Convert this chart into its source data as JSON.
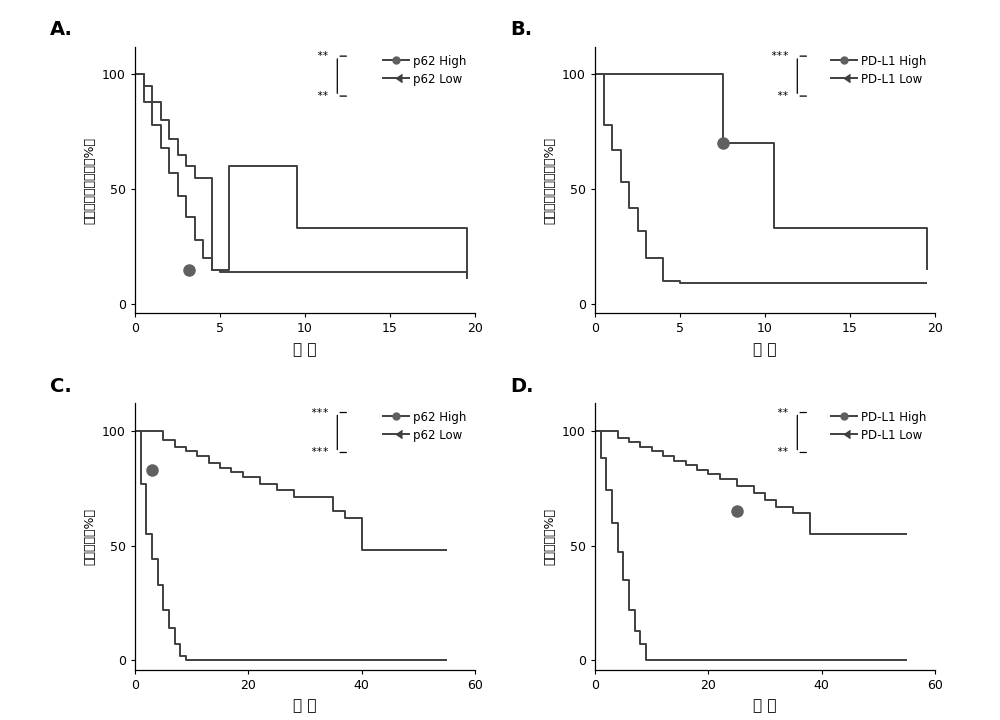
{
  "background_color": "#ffffff",
  "line_color": "#404040",
  "marker_color": "#606060",
  "panel_A": {
    "panel_label": "A.",
    "ylabel": "疾病无进展生存率（%）",
    "xlabel": "月 数",
    "xlim": [
      0,
      20
    ],
    "ylim": [
      -4,
      112
    ],
    "yticks": [
      0,
      50,
      100
    ],
    "xticks": [
      0,
      5,
      10,
      15,
      20
    ],
    "pval_stars": [
      "**",
      "**"
    ],
    "legend_high": "p62 High",
    "legend_low": "p62 Low",
    "high_x": [
      0,
      0.5,
      1.0,
      1.5,
      2.0,
      2.5,
      3.0,
      3.5,
      4.5,
      5.0,
      5.5,
      9.0,
      9.5,
      11.0,
      19.5
    ],
    "high_y": [
      100,
      95,
      88,
      80,
      72,
      65,
      60,
      55,
      15,
      15,
      60,
      60,
      33,
      33,
      12
    ],
    "low_x": [
      0,
      0.5,
      1.0,
      1.5,
      2.0,
      2.5,
      3.0,
      3.5,
      4.0,
      4.5,
      5.0,
      11.0,
      19.5
    ],
    "low_y": [
      100,
      88,
      78,
      68,
      57,
      47,
      38,
      28,
      20,
      15,
      14,
      14,
      11
    ],
    "high_median_x": 3.2,
    "high_median_y": 15
  },
  "panel_B": {
    "panel_label": "B.",
    "ylabel": "疾病无进展生存率（%）",
    "xlabel": "月 数",
    "xlim": [
      0,
      20
    ],
    "ylim": [
      -4,
      112
    ],
    "yticks": [
      0,
      50,
      100
    ],
    "xticks": [
      0,
      5,
      10,
      15,
      20
    ],
    "pval_stars": [
      "***",
      "**"
    ],
    "legend_high": "PD-L1 High",
    "legend_low": "PD-L1 Low",
    "high_x": [
      0,
      5.0,
      7.5,
      9.0,
      10.5,
      19.5
    ],
    "high_y": [
      100,
      100,
      70,
      70,
      33,
      15
    ],
    "low_x": [
      0,
      0.5,
      1.0,
      1.5,
      2.0,
      2.5,
      3.0,
      4.0,
      5.0,
      19.5
    ],
    "low_y": [
      100,
      78,
      67,
      53,
      42,
      32,
      20,
      10,
      9,
      9
    ],
    "high_median_x": 7.5,
    "high_median_y": 70
  },
  "panel_C": {
    "panel_label": "C.",
    "ylabel": "总生存率（%）",
    "xlabel": "月 数",
    "xlim": [
      0,
      60
    ],
    "ylim": [
      -4,
      112
    ],
    "yticks": [
      0,
      50,
      100
    ],
    "xticks": [
      0,
      20,
      40,
      60
    ],
    "pval_stars": [
      "***",
      "***"
    ],
    "legend_high": "p62 High",
    "legend_low": "p62 Low",
    "high_x": [
      0,
      3,
      5,
      7,
      9,
      11,
      13,
      15,
      17,
      19,
      22,
      25,
      28,
      35,
      37,
      40,
      55
    ],
    "high_y": [
      100,
      100,
      96,
      93,
      91,
      89,
      86,
      84,
      82,
      80,
      77,
      74,
      71,
      65,
      62,
      48,
      48
    ],
    "low_x": [
      0,
      1,
      2,
      3,
      4,
      5,
      6,
      7,
      8,
      9,
      55
    ],
    "low_y": [
      100,
      77,
      55,
      44,
      33,
      22,
      14,
      7,
      2,
      0,
      0
    ],
    "high_median_x": 3,
    "high_median_y": 83
  },
  "panel_D": {
    "panel_label": "D.",
    "ylabel": "总生存率（%）",
    "xlabel": "月 数",
    "xlim": [
      0,
      60
    ],
    "ylim": [
      -4,
      112
    ],
    "yticks": [
      0,
      50,
      100
    ],
    "xticks": [
      0,
      20,
      40,
      60
    ],
    "pval_stars": [
      "**",
      "**"
    ],
    "legend_high": "PD-L1 High",
    "legend_low": "PD-L1 Low",
    "high_x": [
      0,
      2,
      4,
      6,
      8,
      10,
      12,
      14,
      16,
      18,
      20,
      22,
      25,
      28,
      30,
      32,
      35,
      38,
      55
    ],
    "high_y": [
      100,
      100,
      97,
      95,
      93,
      91,
      89,
      87,
      85,
      83,
      81,
      79,
      76,
      73,
      70,
      67,
      64,
      55,
      55
    ],
    "low_x": [
      0,
      1,
      2,
      3,
      4,
      5,
      6,
      7,
      8,
      9,
      55
    ],
    "low_y": [
      100,
      88,
      74,
      60,
      47,
      35,
      22,
      13,
      7,
      0,
      0
    ],
    "high_median_x": 25,
    "high_median_y": 65
  }
}
